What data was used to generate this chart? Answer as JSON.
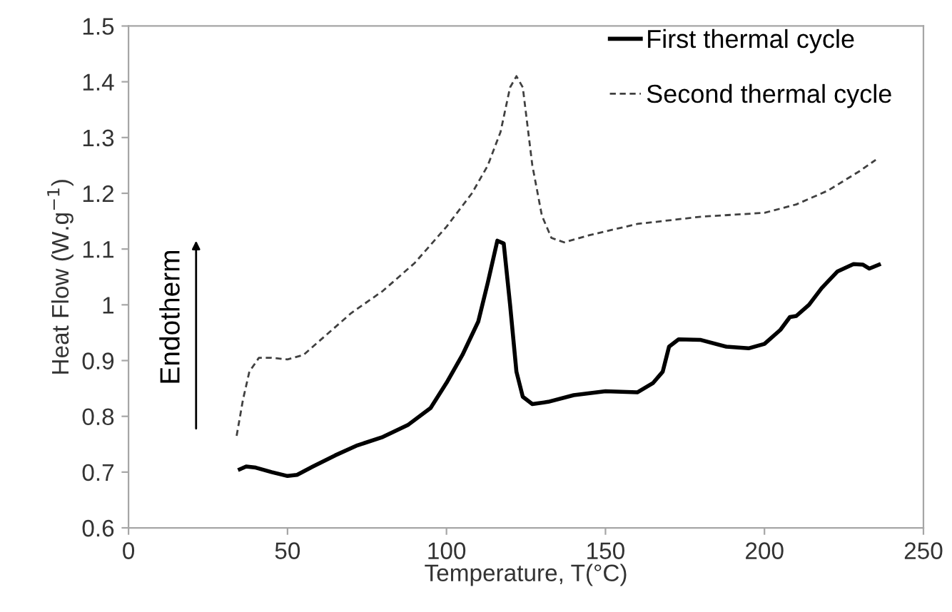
{
  "chart_data": {
    "type": "line",
    "xlabel": "Temperature, T(°C)",
    "ylabel": "Heat Flow (W.g$^{−1}$)",
    "annotations": [
      "Endotherm"
    ],
    "xlim": [
      0,
      250
    ],
    "xticks": [
      0,
      50,
      100,
      150,
      200,
      250
    ],
    "ylim": [
      0.6,
      1.5
    ],
    "yticks": [
      0.6,
      0.7,
      0.8,
      0.9,
      1,
      1.1,
      1.2,
      1.3,
      1.4,
      1.5
    ],
    "grid": false,
    "legend": "top right",
    "marker": "none",
    "series": [
      {
        "name": "First thermal cycle",
        "color": "#000000",
        "line_style": "solid",
        "x": [
          35,
          37,
          40,
          45,
          50,
          53,
          58,
          65,
          72,
          80,
          88,
          95,
          100,
          105,
          110,
          113,
          116,
          118,
          120,
          122,
          124,
          127,
          132,
          140,
          150,
          160,
          165,
          168,
          170,
          173,
          180,
          188,
          195,
          200,
          205,
          208,
          210,
          214,
          218,
          223,
          228,
          231,
          233,
          236
        ],
        "values": [
          0.705,
          0.71,
          0.708,
          0.7,
          0.693,
          0.695,
          0.71,
          0.73,
          0.748,
          0.763,
          0.785,
          0.815,
          0.86,
          0.91,
          0.97,
          1.04,
          1.115,
          1.11,
          1.0,
          0.88,
          0.835,
          0.822,
          0.826,
          0.838,
          0.845,
          0.843,
          0.86,
          0.88,
          0.925,
          0.938,
          0.937,
          0.925,
          0.922,
          0.93,
          0.955,
          0.978,
          0.98,
          1.0,
          1.03,
          1.06,
          1.073,
          1.072,
          1.065,
          1.072
        ]
      },
      {
        "name": "Second thermal cycle",
        "color": "#404040",
        "line_style": "dashed",
        "x": [
          34,
          36,
          38,
          41,
          45,
          50,
          55,
          62,
          70,
          80,
          90,
          100,
          108,
          113,
          117,
          120,
          122,
          124,
          127,
          130,
          133,
          137,
          145,
          160,
          180,
          200,
          210,
          220,
          230,
          235
        ],
        "values": [
          0.765,
          0.83,
          0.88,
          0.905,
          0.905,
          0.902,
          0.91,
          0.945,
          0.985,
          1.025,
          1.075,
          1.14,
          1.2,
          1.25,
          1.31,
          1.39,
          1.41,
          1.39,
          1.25,
          1.16,
          1.12,
          1.112,
          1.125,
          1.145,
          1.158,
          1.165,
          1.18,
          1.205,
          1.24,
          1.26
        ]
      }
    ]
  }
}
